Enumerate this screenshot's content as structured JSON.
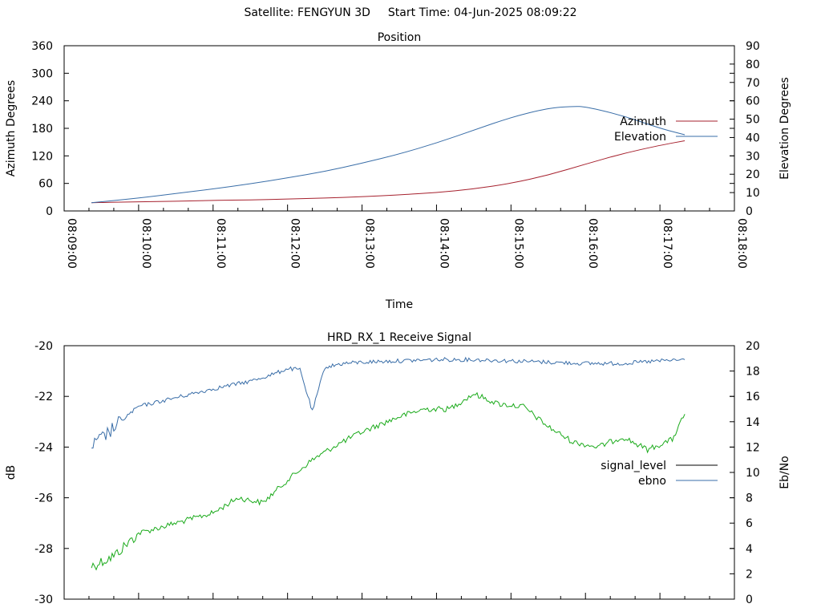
{
  "header": {
    "satellite": "Satellite: FENGYUN 3D",
    "start_time": "Start Time: 04-Jun-2025 08:09:22"
  },
  "colors": {
    "azimuth": "#a6212e",
    "elevation": "#3a6ea8",
    "signal_level": "#000000",
    "ebno": "#3a6ea8",
    "signal_trace": "#1aaa1a",
    "axis": "#000000"
  },
  "chart_data": [
    {
      "type": "line",
      "title": "Position",
      "xlabel": "Time",
      "ylabel": "Azimuth Degrees",
      "y2label": "Elevation Degrees",
      "x_ticks": [
        "08:09:00",
        "08:10:00",
        "08:11:00",
        "08:12:00",
        "08:13:00",
        "08:14:00",
        "08:15:00",
        "08:16:00",
        "08:17:00",
        "08:18:00"
      ],
      "xlim": [
        "08:09:00",
        "08:18:00"
      ],
      "ylim": [
        0,
        360
      ],
      "y_ticks": [
        0,
        60,
        120,
        180,
        240,
        300,
        360
      ],
      "y2lim": [
        0,
        90
      ],
      "y2_ticks": [
        0,
        10,
        20,
        30,
        40,
        50,
        60,
        70,
        80,
        90
      ],
      "legend_position": "top-right",
      "series": [
        {
          "name": "Azimuth",
          "axis": "y",
          "x": [
            "08:09:22",
            "08:10:00",
            "08:10:30",
            "08:11:00",
            "08:11:30",
            "08:12:00",
            "08:12:30",
            "08:13:00",
            "08:13:30",
            "08:14:00",
            "08:14:30",
            "08:15:00",
            "08:15:30",
            "08:16:00",
            "08:16:30",
            "08:17:00",
            "08:17:20"
          ],
          "values": [
            18,
            20,
            21,
            23,
            24,
            26,
            28,
            31,
            35,
            40,
            48,
            60,
            78,
            102,
            125,
            143,
            153
          ]
        },
        {
          "name": "Elevation",
          "axis": "y2",
          "x": [
            "08:09:22",
            "08:10:00",
            "08:10:30",
            "08:11:00",
            "08:11:30",
            "08:12:00",
            "08:12:30",
            "08:13:00",
            "08:13:30",
            "08:14:00",
            "08:14:30",
            "08:15:00",
            "08:15:30",
            "08:15:50",
            "08:16:00",
            "08:16:30",
            "08:17:00",
            "08:17:20"
          ],
          "values": [
            4.5,
            7,
            9.5,
            12,
            14.8,
            18,
            21.5,
            26,
            31,
            37,
            44,
            51,
            56,
            57,
            56.8,
            52,
            45,
            41.5
          ]
        }
      ]
    },
    {
      "type": "line",
      "title": "HRD_RX_1 Receive Signal",
      "ylabel": "dB",
      "y2label": "Eb/No",
      "xlim": [
        "08:09:00",
        "08:18:00"
      ],
      "ylim": [
        -30,
        -20
      ],
      "y_ticks": [
        -30,
        -28,
        -26,
        -24,
        -22,
        -20
      ],
      "y2lim": [
        0,
        20
      ],
      "y2_ticks": [
        0,
        2,
        4,
        6,
        8,
        10,
        12,
        14,
        16,
        18,
        20
      ],
      "legend_position": "right",
      "series": [
        {
          "name": "signal_level",
          "axis": "y",
          "x": [
            "08:09:22",
            "08:09:40",
            "08:10:00",
            "08:10:30",
            "08:11:00",
            "08:11:20",
            "08:11:40",
            "08:12:00",
            "08:12:20",
            "08:12:40",
            "08:13:00",
            "08:13:30",
            "08:13:50",
            "08:14:10",
            "08:14:30",
            "08:14:50",
            "08:15:10",
            "08:15:30",
            "08:15:50",
            "08:16:10",
            "08:16:30",
            "08:16:50",
            "08:17:10",
            "08:17:20"
          ],
          "values": [
            -28.7,
            -28.3,
            -27.4,
            -27.0,
            -26.6,
            -26.0,
            -26.2,
            -25.3,
            -24.5,
            -23.9,
            -23.4,
            -22.8,
            -22.5,
            -22.5,
            -21.9,
            -22.3,
            -22.4,
            -23.2,
            -23.8,
            -24.0,
            -23.6,
            -24.1,
            -23.7,
            -22.7
          ]
        },
        {
          "name": "ebno",
          "axis": "y2",
          "x": [
            "08:09:22",
            "08:09:40",
            "08:09:50",
            "08:10:00",
            "08:10:30",
            "08:11:00",
            "08:11:30",
            "08:11:50",
            "08:12:00",
            "08:12:10",
            "08:12:20",
            "08:12:30",
            "08:12:45",
            "08:13:00",
            "08:13:30",
            "08:14:00",
            "08:14:30",
            "08:15:00",
            "08:15:30",
            "08:16:00",
            "08:16:30",
            "08:17:00",
            "08:17:20"
          ],
          "values": [
            12.0,
            13.5,
            14.4,
            15.2,
            15.9,
            16.6,
            17.2,
            17.8,
            18.2,
            18.1,
            14.8,
            18.3,
            18.6,
            18.7,
            18.8,
            18.9,
            18.9,
            18.8,
            18.7,
            18.6,
            18.6,
            18.8,
            18.9
          ]
        }
      ]
    }
  ]
}
